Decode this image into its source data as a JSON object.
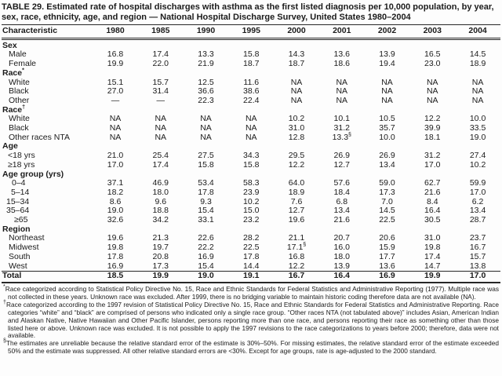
{
  "title": "TABLE 29. Estimated rate of hospital discharges with asthma as the first listed diagnosis per 10,000 population, by year, sex, race, ethnicity, age, and region — National Hospital Discharge Survey, United States 1980–2004",
  "table": {
    "columns": [
      "Characteristic",
      "1980",
      "1985",
      "1990",
      "1995",
      "2000",
      "2001",
      "2002",
      "2003",
      "2004"
    ],
    "rows": [
      {
        "label": "Sex",
        "sup": "",
        "type": "section",
        "indent": 0,
        "values": [
          "",
          "",
          "",
          "",
          "",
          "",
          "",
          "",
          ""
        ]
      },
      {
        "label": "Male",
        "sup": "",
        "type": "data",
        "indent": 9,
        "values": [
          "16.8",
          "17.4",
          "13.3",
          "15.8",
          "14.3",
          "13.6",
          "13.9",
          "16.5",
          "14.5"
        ]
      },
      {
        "label": "Female",
        "sup": "",
        "type": "data",
        "indent": 9,
        "values": [
          "19.9",
          "22.0",
          "21.9",
          "18.7",
          "18.7",
          "18.6",
          "19.4",
          "23.0",
          "18.9"
        ]
      },
      {
        "label": "Race",
        "sup": "*",
        "type": "section",
        "indent": 0,
        "values": [
          "",
          "",
          "",
          "",
          "",
          "",
          "",
          "",
          ""
        ]
      },
      {
        "label": "White",
        "sup": "",
        "type": "data",
        "indent": 9,
        "values": [
          "15.1",
          "15.7",
          "12.5",
          "11.6",
          "NA",
          "NA",
          "NA",
          "NA",
          "NA"
        ]
      },
      {
        "label": "Black",
        "sup": "",
        "type": "data",
        "indent": 9,
        "values": [
          "27.0",
          "31.4",
          "36.6",
          "38.6",
          "NA",
          "NA",
          "NA",
          "NA",
          "NA"
        ]
      },
      {
        "label": "Other",
        "sup": "",
        "type": "data",
        "indent": 9,
        "values": [
          "—",
          "—",
          "22.3",
          "22.4",
          "NA",
          "NA",
          "NA",
          "NA",
          "NA"
        ]
      },
      {
        "label": "Race",
        "sup": "†",
        "type": "section",
        "indent": 0,
        "values": [
          "",
          "",
          "",
          "",
          "",
          "",
          "",
          "",
          ""
        ]
      },
      {
        "label": "White",
        "sup": "",
        "type": "data",
        "indent": 9,
        "values": [
          "NA",
          "NA",
          "NA",
          "NA",
          "10.2",
          "10.1",
          "10.5",
          "12.2",
          "10.0"
        ]
      },
      {
        "label": "Black",
        "sup": "",
        "type": "data",
        "indent": 9,
        "values": [
          "NA",
          "NA",
          "NA",
          "NA",
          "31.0",
          "31.2",
          "35.7",
          "39.9",
          "33.5"
        ]
      },
      {
        "label": "Other races NTA",
        "sup": "",
        "type": "data",
        "indent": 9,
        "values": [
          "NA",
          "NA",
          "NA",
          "NA",
          "12.8",
          "13.3§",
          "10.0",
          "18.1",
          "19.0"
        ]
      },
      {
        "label": "Age",
        "sup": "",
        "type": "section",
        "indent": 0,
        "values": [
          "",
          "",
          "",
          "",
          "",
          "",
          "",
          "",
          ""
        ]
      },
      {
        "label": "<18 yrs",
        "sup": "",
        "type": "data",
        "indent": 8,
        "values": [
          "21.0",
          "25.4",
          "27.5",
          "34.3",
          "29.5",
          "26.9",
          "26.9",
          "31.2",
          "27.4"
        ]
      },
      {
        "label": "≥18 yrs",
        "sup": "",
        "type": "data",
        "indent": 8,
        "values": [
          "17.0",
          "17.4",
          "15.8",
          "15.8",
          "12.2",
          "12.7",
          "13.4",
          "17.0",
          "10.2"
        ]
      },
      {
        "label": "Age group (yrs)",
        "sup": "",
        "type": "section",
        "indent": 0,
        "values": [
          "",
          "",
          "",
          "",
          "",
          "",
          "",
          "",
          ""
        ]
      },
      {
        "label": "0–4",
        "sup": "",
        "type": "data",
        "indent": 13,
        "values": [
          "37.1",
          "46.9",
          "53.4",
          "58.3",
          "64.0",
          "57.6",
          "59.0",
          "62.7",
          "59.9"
        ]
      },
      {
        "label": "5–14",
        "sup": "",
        "type": "data",
        "indent": 12,
        "values": [
          "18.2",
          "18.0",
          "17.8",
          "23.9",
          "18.9",
          "18.4",
          "17.3",
          "21.6",
          "17.0"
        ]
      },
      {
        "label": "15–34",
        "sup": "",
        "type": "data",
        "indent": 6,
        "values": [
          "8.6",
          "9.6",
          "9.3",
          "10.2",
          "7.6",
          "6.8",
          "7.0",
          "8.4",
          "6.2"
        ]
      },
      {
        "label": "35–64",
        "sup": "",
        "type": "data",
        "indent": 6,
        "values": [
          "19.0",
          "18.8",
          "15.4",
          "15.0",
          "12.7",
          "13.4",
          "14.5",
          "16.4",
          "13.4"
        ]
      },
      {
        "label": "≥65",
        "sup": "",
        "type": "data",
        "indent": 16,
        "values": [
          "32.6",
          "34.2",
          "33.1",
          "23.2",
          "19.6",
          "21.6",
          "22.5",
          "30.5",
          "28.7"
        ]
      },
      {
        "label": "Region",
        "sup": "",
        "type": "section",
        "indent": 0,
        "values": [
          "",
          "",
          "",
          "",
          "",
          "",
          "",
          "",
          ""
        ]
      },
      {
        "label": "Northeast",
        "sup": "",
        "type": "data",
        "indent": 9,
        "values": [
          "19.6",
          "21.3",
          "22.6",
          "28.2",
          "21.1",
          "20.7",
          "20.6",
          "31.0",
          "23.7"
        ]
      },
      {
        "label": "Midwest",
        "sup": "",
        "type": "data",
        "indent": 9,
        "values": [
          "19.8",
          "19.7",
          "22.2",
          "22.5",
          "17.1§",
          "16.0",
          "15.9",
          "19.8",
          "16.7"
        ]
      },
      {
        "label": "South",
        "sup": "",
        "type": "data",
        "indent": 9,
        "values": [
          "17.8",
          "20.8",
          "16.9",
          "17.8",
          "16.8",
          "18.0",
          "17.7",
          "17.4",
          "15.7"
        ]
      },
      {
        "label": "West",
        "sup": "",
        "type": "data",
        "indent": 9,
        "values": [
          "16.9",
          "17.3",
          "15.4",
          "14.4",
          "12.2",
          "13.9",
          "13.6",
          "14.7",
          "13.8"
        ]
      },
      {
        "label": "Total",
        "sup": "",
        "type": "total",
        "indent": 0,
        "values": [
          "18.5",
          "19.9",
          "19.0",
          "19.1",
          "16.7",
          "16.4",
          "16.9",
          "19.9",
          "17.0"
        ]
      }
    ]
  },
  "footnotes": [
    {
      "marker": "*",
      "text": "Race categorized according to Statistical Policy Directive No. 15, Race and Ethnic Standards for Federal Statistics and Administrative Reporting (1977). Multiple race was not collected in these years. Unknown race was excluded. After 1999, there is no bridging variable to maintain historic coding therefore data are not available (NA)."
    },
    {
      "marker": "†",
      "text": "Race categorized according to the 1997 revision of Statistical Policy Directive No. 15, Race and Ethnic Standards for Federal Statistics and Administrative Reporting. Race categories “white” and “black” are comprised of persons who indicated only a single race group. “Other races NTA (not tabulated above)” includes Asian, American Indian and Alaskan Native, Native Hawaiian and Other Pacific Islander, persons reporting more than one race, and persons reporting their race as something other than those listed here or above. Unknown race was excluded. It is not possible to apply the 1997 revisions to the race categorizations to years before 2000; therefore, data were not available."
    },
    {
      "marker": "§",
      "text": "The estimates are unreliable because the relative standard error of the estimate is 30%–50%. For missing estimates, the relative standard error of the estimate exceeded 50% and the estimate was suppressed. All other relative standard errors are <30%. Except for age groups, rate is age-adjusted to the 2000 standard."
    }
  ]
}
